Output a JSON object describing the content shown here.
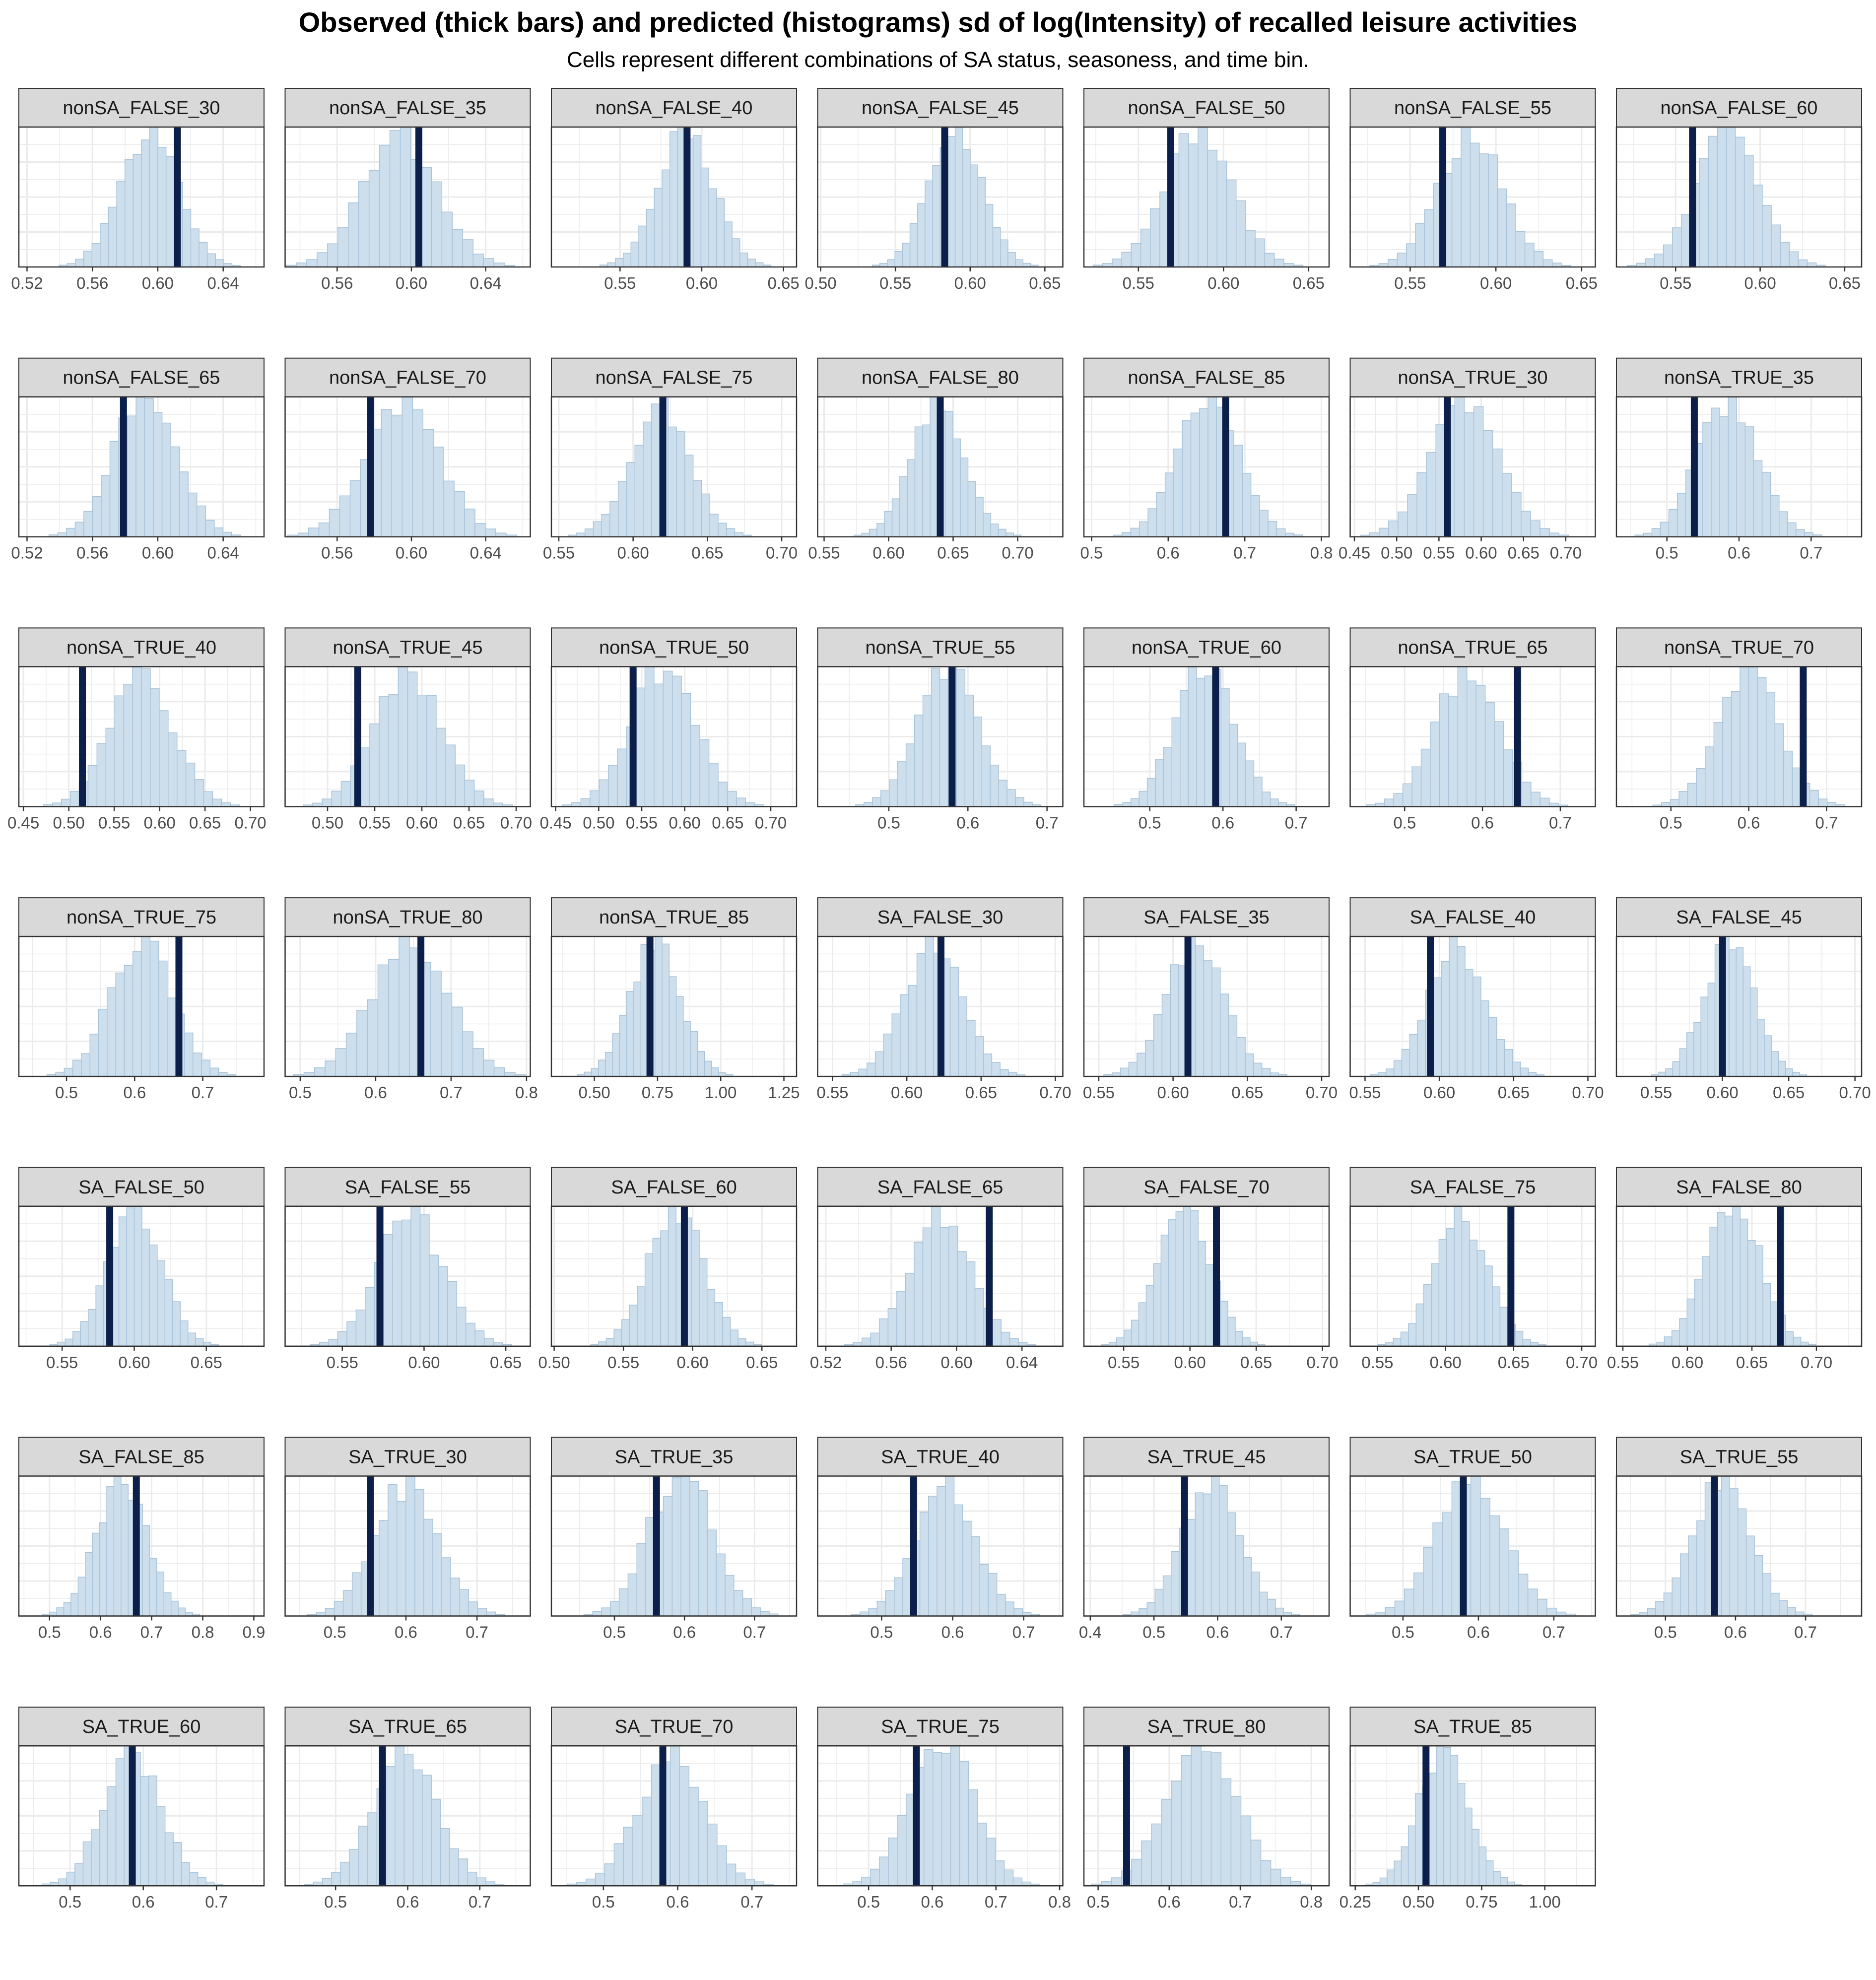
{
  "chart_data": {
    "type": "histogram-facets",
    "title": "Observed (thick bars) and predicted (histograms) sd of log(Intensity) of recalled leisure activities",
    "subtitle": "Cells represent different combinations of SA status, seasoness, and time bin.",
    "colors": {
      "histogram_fill": "#cddfec",
      "histogram_stroke": "#a9c3d9",
      "observed_bar": "#0b1f4a",
      "strip_fill": "#d9d9d9",
      "grid": "#ebebeb",
      "panel_border": "#333333"
    },
    "grid": true,
    "panels": [
      {
        "label": "nonSA_FALSE_30",
        "xlim": [
          0.515,
          0.665
        ],
        "ticks": [
          0.52,
          0.56,
          0.6,
          0.64
        ],
        "tick_labels": [
          "0.52",
          "0.56",
          "0.60",
          "0.64"
        ],
        "mean": 0.595,
        "sd": 0.018,
        "observed": 0.612
      },
      {
        "label": "nonSA_FALSE_35",
        "xlim": [
          0.532,
          0.664
        ],
        "ticks": [
          0.56,
          0.6,
          0.64
        ],
        "tick_labels": [
          "0.56",
          "0.60",
          "0.64"
        ],
        "mean": 0.594,
        "sd": 0.02,
        "observed": 0.604
      },
      {
        "label": "nonSA_FALSE_40",
        "xlim": [
          0.508,
          0.658
        ],
        "ticks": [
          0.55,
          0.6,
          0.65
        ],
        "tick_labels": [
          "0.55",
          "0.60",
          "0.65"
        ],
        "mean": 0.59,
        "sd": 0.017,
        "observed": 0.591
      },
      {
        "label": "nonSA_FALSE_45",
        "xlim": [
          0.498,
          0.662
        ],
        "ticks": [
          0.5,
          0.55,
          0.6,
          0.65
        ],
        "tick_labels": [
          "0.50",
          "0.55",
          "0.60",
          "0.65"
        ],
        "mean": 0.59,
        "sd": 0.018,
        "observed": 0.583
      },
      {
        "label": "nonSA_FALSE_50",
        "xlim": [
          0.518,
          0.662
        ],
        "ticks": [
          0.55,
          0.6,
          0.65
        ],
        "tick_labels": [
          "0.55",
          "0.60",
          "0.65"
        ],
        "mean": 0.585,
        "sd": 0.02,
        "observed": 0.569
      },
      {
        "label": "nonSA_FALSE_55",
        "xlim": [
          0.515,
          0.658
        ],
        "ticks": [
          0.55,
          0.6,
          0.65
        ],
        "tick_labels": [
          "0.55",
          "0.60",
          "0.65"
        ],
        "mean": 0.585,
        "sd": 0.019,
        "observed": 0.569
      },
      {
        "label": "nonSA_FALSE_60",
        "xlim": [
          0.515,
          0.66
        ],
        "ticks": [
          0.55,
          0.6,
          0.65
        ],
        "tick_labels": [
          "0.55",
          "0.60",
          "0.65"
        ],
        "mean": 0.58,
        "sd": 0.019,
        "observed": 0.56
      },
      {
        "label": "nonSA_FALSE_65",
        "xlim": [
          0.515,
          0.665
        ],
        "ticks": [
          0.52,
          0.56,
          0.6,
          0.64
        ],
        "tick_labels": [
          "0.52",
          "0.56",
          "0.60",
          "0.64"
        ],
        "mean": 0.592,
        "sd": 0.019,
        "observed": 0.579
      },
      {
        "label": "nonSA_FALSE_70",
        "xlim": [
          0.532,
          0.664
        ],
        "ticks": [
          0.56,
          0.6,
          0.64
        ],
        "tick_labels": [
          "0.56",
          "0.60",
          "0.64"
        ],
        "mean": 0.595,
        "sd": 0.02,
        "observed": 0.578
      },
      {
        "label": "nonSA_FALSE_75",
        "xlim": [
          0.545,
          0.71
        ],
        "ticks": [
          0.55,
          0.6,
          0.65,
          0.7
        ],
        "tick_labels": [
          "0.55",
          "0.60",
          "0.65",
          "0.70"
        ],
        "mean": 0.618,
        "sd": 0.02,
        "observed": 0.62
      },
      {
        "label": "nonSA_FALSE_80",
        "xlim": [
          0.545,
          0.735
        ],
        "ticks": [
          0.55,
          0.6,
          0.65,
          0.7
        ],
        "tick_labels": [
          "0.55",
          "0.60",
          "0.65",
          "0.70"
        ],
        "mean": 0.638,
        "sd": 0.021,
        "observed": 0.64
      },
      {
        "label": "nonSA_FALSE_85",
        "xlim": [
          0.49,
          0.81
        ],
        "ticks": [
          0.5,
          0.6,
          0.7,
          0.8
        ],
        "tick_labels": [
          "0.5",
          "0.6",
          "0.7",
          "0.8"
        ],
        "mean": 0.652,
        "sd": 0.04,
        "observed": 0.675
      },
      {
        "label": "nonSA_TRUE_30",
        "xlim": [
          0.445,
          0.735
        ],
        "ticks": [
          0.45,
          0.5,
          0.55,
          0.6,
          0.65,
          0.7
        ],
        "tick_labels": [
          "0.45",
          "0.50",
          "0.55",
          "0.60",
          "0.65",
          "0.70"
        ],
        "mean": 0.58,
        "sd": 0.04,
        "observed": 0.56
      },
      {
        "label": "nonSA_TRUE_35",
        "xlim": [
          0.43,
          0.77
        ],
        "ticks": [
          0.5,
          0.6,
          0.7
        ],
        "tick_labels": [
          "0.5",
          "0.6",
          "0.7"
        ],
        "mean": 0.585,
        "sd": 0.042,
        "observed": 0.538
      },
      {
        "label": "nonSA_TRUE_40",
        "xlim": [
          0.445,
          0.715
        ],
        "ticks": [
          0.45,
          0.5,
          0.55,
          0.6,
          0.65,
          0.7
        ],
        "tick_labels": [
          "0.45",
          "0.50",
          "0.55",
          "0.60",
          "0.65",
          "0.70"
        ],
        "mean": 0.58,
        "sd": 0.035,
        "observed": 0.515
      },
      {
        "label": "nonSA_TRUE_45",
        "xlim": [
          0.455,
          0.715
        ],
        "ticks": [
          0.5,
          0.55,
          0.6,
          0.65,
          0.7
        ],
        "tick_labels": [
          "0.50",
          "0.55",
          "0.60",
          "0.65",
          "0.70"
        ],
        "mean": 0.585,
        "sd": 0.036,
        "observed": 0.532
      },
      {
        "label": "nonSA_TRUE_50",
        "xlim": [
          0.445,
          0.73
        ],
        "ticks": [
          0.45,
          0.5,
          0.55,
          0.6,
          0.65,
          0.7
        ],
        "tick_labels": [
          "0.45",
          "0.50",
          "0.55",
          "0.60",
          "0.65",
          "0.70"
        ],
        "mean": 0.575,
        "sd": 0.038,
        "observed": 0.54
      },
      {
        "label": "nonSA_TRUE_55",
        "xlim": [
          0.41,
          0.72
        ],
        "ticks": [
          0.5,
          0.6,
          0.7
        ],
        "tick_labels": [
          "0.5",
          "0.6",
          "0.7"
        ],
        "mean": 0.575,
        "sd": 0.038,
        "observed": 0.58
      },
      {
        "label": "nonSA_TRUE_60",
        "xlim": [
          0.41,
          0.745
        ],
        "ticks": [
          0.5,
          0.6,
          0.7
        ],
        "tick_labels": [
          "0.5",
          "0.6",
          "0.7"
        ],
        "mean": 0.575,
        "sd": 0.04,
        "observed": 0.59
      },
      {
        "label": "nonSA_TRUE_65",
        "xlim": [
          0.43,
          0.745
        ],
        "ticks": [
          0.5,
          0.6,
          0.7
        ],
        "tick_labels": [
          "0.5",
          "0.6",
          "0.7"
        ],
        "mean": 0.58,
        "sd": 0.042,
        "observed": 0.645
      },
      {
        "label": "nonSA_TRUE_70",
        "xlim": [
          0.43,
          0.745
        ],
        "ticks": [
          0.5,
          0.6,
          0.7
        ],
        "tick_labels": [
          "0.5",
          "0.6",
          "0.7"
        ],
        "mean": 0.6,
        "sd": 0.04,
        "observed": 0.67
      },
      {
        "label": "nonSA_TRUE_75",
        "xlim": [
          0.43,
          0.79
        ],
        "ticks": [
          0.5,
          0.6,
          0.7
        ],
        "tick_labels": [
          "0.5",
          "0.6",
          "0.7"
        ],
        "mean": 0.61,
        "sd": 0.045,
        "observed": 0.665
      },
      {
        "label": "nonSA_TRUE_80",
        "xlim": [
          0.48,
          0.805
        ],
        "ticks": [
          0.5,
          0.6,
          0.7,
          0.8
        ],
        "tick_labels": [
          "0.5",
          "0.6",
          "0.7",
          "0.8"
        ],
        "mean": 0.645,
        "sd": 0.05,
        "observed": 0.66
      },
      {
        "label": "nonSA_TRUE_85",
        "xlim": [
          0.33,
          1.3
        ],
        "ticks": [
          0.5,
          0.75,
          1.0,
          1.25
        ],
        "tick_labels": [
          "0.50",
          "0.75",
          "1.00",
          "1.25"
        ],
        "mean": 0.74,
        "sd": 0.1,
        "observed": 0.72
      },
      {
        "label": "SA_FALSE_30",
        "xlim": [
          0.54,
          0.705
        ],
        "ticks": [
          0.55,
          0.6,
          0.65,
          0.7
        ],
        "tick_labels": [
          "0.55",
          "0.60",
          "0.65",
          "0.70"
        ],
        "mean": 0.618,
        "sd": 0.02,
        "observed": 0.623
      },
      {
        "label": "SA_FALSE_35",
        "xlim": [
          0.54,
          0.705
        ],
        "ticks": [
          0.55,
          0.6,
          0.65,
          0.7
        ],
        "tick_labels": [
          "0.55",
          "0.60",
          "0.65",
          "0.70"
        ],
        "mean": 0.615,
        "sd": 0.02,
        "observed": 0.61
      },
      {
        "label": "SA_FALSE_40",
        "xlim": [
          0.54,
          0.705
        ],
        "ticks": [
          0.55,
          0.6,
          0.65,
          0.7
        ],
        "tick_labels": [
          "0.55",
          "0.60",
          "0.65",
          "0.70"
        ],
        "mean": 0.612,
        "sd": 0.019,
        "observed": 0.594
      },
      {
        "label": "SA_FALSE_45",
        "xlim": [
          0.52,
          0.705
        ],
        "ticks": [
          0.55,
          0.6,
          0.65,
          0.7
        ],
        "tick_labels": [
          "0.55",
          "0.60",
          "0.65",
          "0.70"
        ],
        "mean": 0.605,
        "sd": 0.019,
        "observed": 0.6
      },
      {
        "label": "SA_FALSE_50",
        "xlim": [
          0.52,
          0.69
        ],
        "ticks": [
          0.55,
          0.6,
          0.65
        ],
        "tick_labels": [
          "0.55",
          "0.60",
          "0.65"
        ],
        "mean": 0.6,
        "sd": 0.019,
        "observed": 0.583
      },
      {
        "label": "SA_FALSE_55",
        "xlim": [
          0.515,
          0.665
        ],
        "ticks": [
          0.55,
          0.6,
          0.65
        ],
        "tick_labels": [
          "0.55",
          "0.60",
          "0.65"
        ],
        "mean": 0.592,
        "sd": 0.02,
        "observed": 0.573
      },
      {
        "label": "SA_FALSE_60",
        "xlim": [
          0.498,
          0.675
        ],
        "ticks": [
          0.5,
          0.55,
          0.6,
          0.65
        ],
        "tick_labels": [
          "0.50",
          "0.55",
          "0.60",
          "0.65"
        ],
        "mean": 0.588,
        "sd": 0.02,
        "observed": 0.594
      },
      {
        "label": "SA_FALSE_65",
        "xlim": [
          0.515,
          0.665
        ],
        "ticks": [
          0.52,
          0.56,
          0.6,
          0.64
        ],
        "tick_labels": [
          "0.52",
          "0.56",
          "0.60",
          "0.64"
        ],
        "mean": 0.59,
        "sd": 0.019,
        "observed": 0.62
      },
      {
        "label": "SA_FALSE_70",
        "xlim": [
          0.52,
          0.705
        ],
        "ticks": [
          0.55,
          0.6,
          0.65,
          0.7
        ],
        "tick_labels": [
          "0.55",
          "0.60",
          "0.65",
          "0.70"
        ],
        "mean": 0.595,
        "sd": 0.02,
        "observed": 0.62
      },
      {
        "label": "SA_FALSE_75",
        "xlim": [
          0.53,
          0.71
        ],
        "ticks": [
          0.55,
          0.6,
          0.65,
          0.7
        ],
        "tick_labels": [
          "0.55",
          "0.60",
          "0.65",
          "0.70"
        ],
        "mean": 0.612,
        "sd": 0.02,
        "observed": 0.648
      },
      {
        "label": "SA_FALSE_80",
        "xlim": [
          0.545,
          0.735
        ],
        "ticks": [
          0.55,
          0.6,
          0.65,
          0.7
        ],
        "tick_labels": [
          "0.55",
          "0.60",
          "0.65",
          "0.70"
        ],
        "mean": 0.635,
        "sd": 0.021,
        "observed": 0.672
      },
      {
        "label": "SA_FALSE_85",
        "xlim": [
          0.44,
          0.92
        ],
        "ticks": [
          0.5,
          0.6,
          0.7,
          0.8,
          0.9
        ],
        "tick_labels": [
          "0.5",
          "0.6",
          "0.7",
          "0.8",
          "0.9"
        ],
        "mean": 0.64,
        "sd": 0.05,
        "observed": 0.67
      },
      {
        "label": "SA_TRUE_30",
        "xlim": [
          0.43,
          0.775
        ],
        "ticks": [
          0.5,
          0.6,
          0.7
        ],
        "tick_labels": [
          "0.5",
          "0.6",
          "0.7"
        ],
        "mean": 0.6,
        "sd": 0.045,
        "observed": 0.55
      },
      {
        "label": "SA_TRUE_35",
        "xlim": [
          0.41,
          0.76
        ],
        "ticks": [
          0.5,
          0.6,
          0.7
        ],
        "tick_labels": [
          "0.5",
          "0.6",
          "0.7"
        ],
        "mean": 0.595,
        "sd": 0.045,
        "observed": 0.56
      },
      {
        "label": "SA_TRUE_40",
        "xlim": [
          0.41,
          0.755
        ],
        "ticks": [
          0.5,
          0.6,
          0.7
        ],
        "tick_labels": [
          "0.5",
          "0.6",
          "0.7"
        ],
        "mean": 0.59,
        "sd": 0.043,
        "observed": 0.545
      },
      {
        "label": "SA_TRUE_45",
        "xlim": [
          0.39,
          0.775
        ],
        "ticks": [
          0.4,
          0.5,
          0.6,
          0.7
        ],
        "tick_labels": [
          "0.4",
          "0.5",
          "0.6",
          "0.7"
        ],
        "mean": 0.59,
        "sd": 0.045,
        "observed": 0.548
      },
      {
        "label": "SA_TRUE_50",
        "xlim": [
          0.43,
          0.755
        ],
        "ticks": [
          0.5,
          0.6,
          0.7
        ],
        "tick_labels": [
          "0.5",
          "0.6",
          "0.7"
        ],
        "mean": 0.59,
        "sd": 0.045,
        "observed": 0.58
      },
      {
        "label": "SA_TRUE_55",
        "xlim": [
          0.43,
          0.78
        ],
        "ticks": [
          0.5,
          0.6,
          0.7
        ],
        "tick_labels": [
          "0.5",
          "0.6",
          "0.7"
        ],
        "mean": 0.58,
        "sd": 0.042,
        "observed": 0.57
      },
      {
        "label": "SA_TRUE_60",
        "xlim": [
          0.43,
          0.765
        ],
        "ticks": [
          0.5,
          0.6,
          0.7
        ],
        "tick_labels": [
          "0.5",
          "0.6",
          "0.7"
        ],
        "mean": 0.585,
        "sd": 0.04,
        "observed": 0.585
      },
      {
        "label": "SA_TRUE_65",
        "xlim": [
          0.43,
          0.77
        ],
        "ticks": [
          0.5,
          0.6,
          0.7
        ],
        "tick_labels": [
          "0.5",
          "0.6",
          "0.7"
        ],
        "mean": 0.595,
        "sd": 0.045,
        "observed": 0.565
      },
      {
        "label": "SA_TRUE_70",
        "xlim": [
          0.43,
          0.76
        ],
        "ticks": [
          0.5,
          0.6,
          0.7
        ],
        "tick_labels": [
          "0.5",
          "0.6",
          "0.7"
        ],
        "mean": 0.59,
        "sd": 0.045,
        "observed": 0.58
      },
      {
        "label": "SA_TRUE_75",
        "xlim": [
          0.42,
          0.805
        ],
        "ticks": [
          0.5,
          0.6,
          0.7,
          0.8
        ],
        "tick_labels": [
          "0.5",
          "0.6",
          "0.7",
          "0.8"
        ],
        "mean": 0.615,
        "sd": 0.05,
        "observed": 0.575
      },
      {
        "label": "SA_TRUE_80",
        "xlim": [
          0.48,
          0.825
        ],
        "ticks": [
          0.5,
          0.6,
          0.7,
          0.8
        ],
        "tick_labels": [
          "0.5",
          "0.6",
          "0.7",
          "0.8"
        ],
        "mean": 0.645,
        "sd": 0.05,
        "observed": 0.54
      },
      {
        "label": "SA_TRUE_85",
        "xlim": [
          0.23,
          1.2
        ],
        "ticks": [
          0.25,
          0.5,
          0.75,
          1.0
        ],
        "tick_labels": [
          "0.25",
          "0.50",
          "0.75",
          "1.00"
        ],
        "mean": 0.6,
        "sd": 0.1,
        "observed": 0.53
      }
    ]
  }
}
